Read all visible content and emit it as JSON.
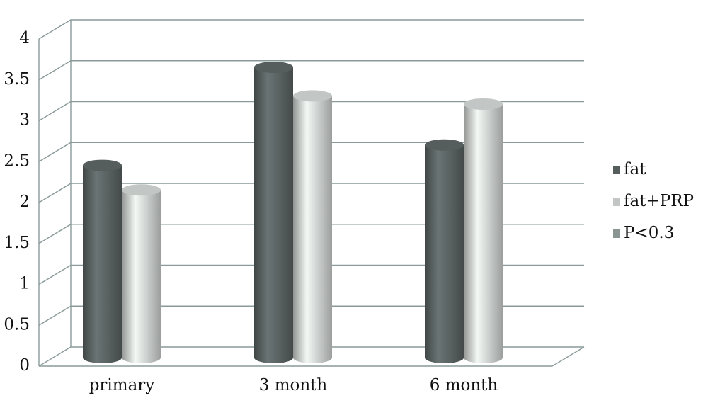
{
  "chart_data": {
    "type": "bar",
    "categories": [
      "primary",
      "3 month",
      "6 month"
    ],
    "series": [
      {
        "name": "fat",
        "color": "#555d5d",
        "values": [
          2.35,
          3.55,
          2.6
        ]
      },
      {
        "name": "fat+PRP",
        "color": "#c2c6c4",
        "values": [
          2.05,
          3.2,
          3.1
        ]
      },
      {
        "name": "P<0.3",
        "color": "#8a9493",
        "values": [
          null,
          null,
          null
        ]
      }
    ],
    "ylim": [
      0,
      4
    ],
    "yticks": [
      0,
      0.5,
      1,
      1.5,
      2,
      2.5,
      3,
      3.5,
      4
    ],
    "grid": true,
    "legend": "right"
  }
}
